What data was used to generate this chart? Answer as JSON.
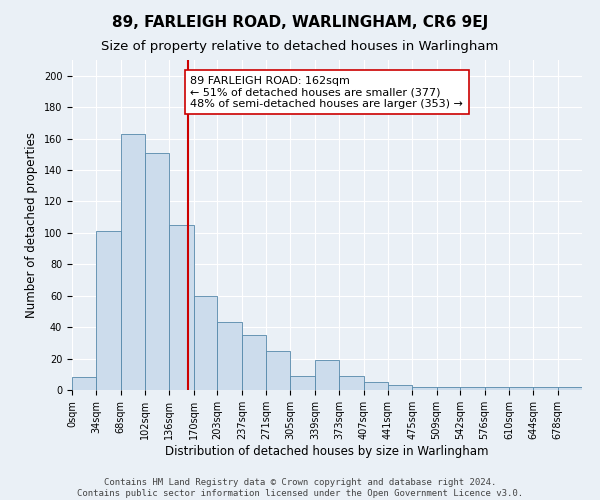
{
  "title": "89, FARLEIGH ROAD, WARLINGHAM, CR6 9EJ",
  "subtitle": "Size of property relative to detached houses in Warlingham",
  "xlabel": "Distribution of detached houses by size in Warlingham",
  "ylabel": "Number of detached properties",
  "bar_labels": [
    "0sqm",
    "34sqm",
    "68sqm",
    "102sqm",
    "136sqm",
    "170sqm",
    "203sqm",
    "237sqm",
    "271sqm",
    "305sqm",
    "339sqm",
    "373sqm",
    "407sqm",
    "441sqm",
    "475sqm",
    "509sqm",
    "542sqm",
    "576sqm",
    "610sqm",
    "644sqm",
    "678sqm"
  ],
  "bar_values": [
    8,
    101,
    163,
    151,
    105,
    60,
    43,
    35,
    25,
    9,
    19,
    9,
    5,
    3,
    2,
    2,
    2,
    2,
    2,
    2,
    2
  ],
  "bin_edges": [
    0,
    34,
    68,
    102,
    136,
    170,
    203,
    237,
    271,
    305,
    339,
    373,
    407,
    441,
    475,
    509,
    542,
    576,
    610,
    644,
    678,
    712
  ],
  "bar_color": "#ccdcec",
  "bar_edge_color": "#5588aa",
  "vertical_line_x": 162,
  "vertical_line_color": "#cc0000",
  "annotation_text": "89 FARLEIGH ROAD: 162sqm\n← 51% of detached houses are smaller (377)\n48% of semi-detached houses are larger (353) →",
  "annotation_box_color": "#ffffff",
  "annotation_box_edge": "#cc0000",
  "ylim": [
    0,
    210
  ],
  "yticks": [
    0,
    20,
    40,
    60,
    80,
    100,
    120,
    140,
    160,
    180,
    200
  ],
  "footer1": "Contains HM Land Registry data © Crown copyright and database right 2024.",
  "footer2": "Contains public sector information licensed under the Open Government Licence v3.0.",
  "background_color": "#eaf0f6",
  "grid_color": "#ffffff",
  "title_fontsize": 11,
  "subtitle_fontsize": 9.5,
  "axis_label_fontsize": 8.5,
  "tick_fontsize": 7,
  "annotation_fontsize": 8,
  "footer_fontsize": 6.5
}
